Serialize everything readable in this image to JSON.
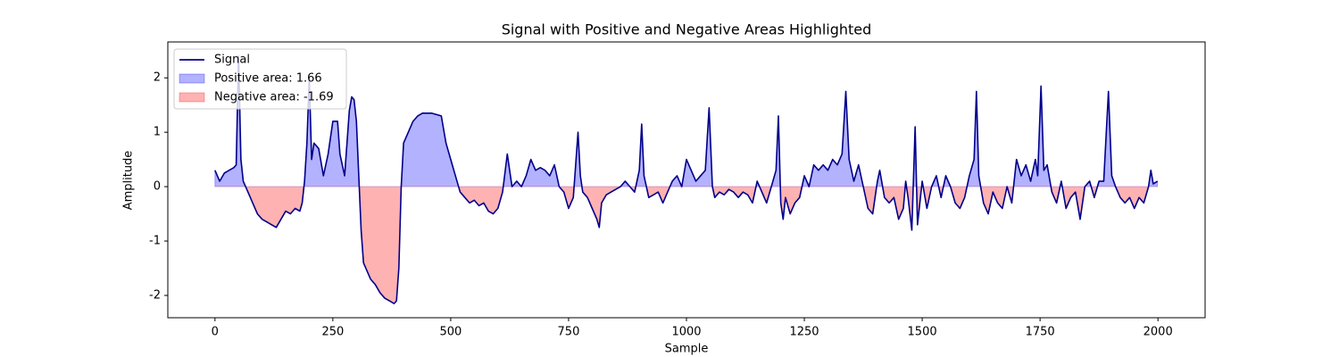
{
  "chart_data": {
    "type": "line",
    "title": "Signal with Positive and Negative Areas Highlighted",
    "x_label": "Sample",
    "y_label": "Amplitude",
    "x": [
      0,
      10,
      20,
      30,
      40,
      45,
      50,
      55,
      60,
      70,
      80,
      90,
      100,
      110,
      120,
      130,
      140,
      150,
      160,
      170,
      180,
      185,
      190,
      195,
      200,
      205,
      210,
      220,
      230,
      240,
      250,
      260,
      265,
      275,
      285,
      290,
      295,
      300,
      305,
      310,
      315,
      320,
      330,
      340,
      350,
      360,
      370,
      380,
      385,
      390,
      395,
      400,
      410,
      420,
      430,
      440,
      460,
      480,
      490,
      500,
      510,
      520,
      530,
      540,
      550,
      560,
      570,
      580,
      590,
      600,
      610,
      620,
      625,
      630,
      640,
      650,
      660,
      670,
      680,
      690,
      700,
      710,
      720,
      730,
      740,
      750,
      760,
      765,
      770,
      775,
      780,
      790,
      800,
      810,
      815,
      820,
      830,
      840,
      850,
      860,
      870,
      880,
      890,
      900,
      905,
      910,
      920,
      930,
      940,
      950,
      960,
      970,
      980,
      990,
      1000,
      1010,
      1020,
      1030,
      1040,
      1048,
      1055,
      1060,
      1070,
      1080,
      1090,
      1100,
      1110,
      1120,
      1130,
      1140,
      1150,
      1160,
      1170,
      1180,
      1190,
      1195,
      1200,
      1205,
      1210,
      1220,
      1230,
      1240,
      1250,
      1260,
      1270,
      1280,
      1290,
      1300,
      1310,
      1320,
      1330,
      1338,
      1345,
      1355,
      1365,
      1375,
      1385,
      1395,
      1405,
      1410,
      1420,
      1430,
      1440,
      1450,
      1460,
      1465,
      1470,
      1478,
      1485,
      1490,
      1500,
      1510,
      1520,
      1530,
      1540,
      1550,
      1560,
      1570,
      1580,
      1590,
      1600,
      1610,
      1615,
      1620,
      1630,
      1640,
      1650,
      1660,
      1670,
      1680,
      1690,
      1700,
      1710,
      1720,
      1730,
      1740,
      1745,
      1752,
      1758,
      1765,
      1775,
      1785,
      1795,
      1805,
      1815,
      1825,
      1835,
      1845,
      1855,
      1865,
      1875,
      1885,
      1895,
      1902,
      1910,
      1920,
      1930,
      1940,
      1950,
      1960,
      1970,
      1980,
      1985,
      1990,
      1999
    ],
    "series": [
      {
        "name": "Signal",
        "color": "#00008b",
        "values": [
          0.3,
          0.1,
          0.25,
          0.3,
          0.35,
          0.4,
          2.4,
          0.5,
          0.1,
          -0.1,
          -0.3,
          -0.5,
          -0.6,
          -0.65,
          -0.7,
          -0.75,
          -0.6,
          -0.45,
          -0.5,
          -0.4,
          -0.45,
          -0.3,
          0.1,
          0.8,
          2.0,
          0.5,
          0.8,
          0.7,
          0.2,
          0.6,
          1.2,
          1.2,
          0.6,
          0.2,
          1.4,
          1.65,
          1.6,
          1.2,
          0.2,
          -0.8,
          -1.4,
          -1.5,
          -1.7,
          -1.8,
          -1.95,
          -2.05,
          -2.1,
          -2.15,
          -2.1,
          -1.5,
          0.0,
          0.8,
          1.0,
          1.2,
          1.3,
          1.35,
          1.35,
          1.3,
          0.8,
          0.5,
          0.2,
          -0.1,
          -0.2,
          -0.3,
          -0.25,
          -0.35,
          -0.3,
          -0.45,
          -0.5,
          -0.4,
          -0.1,
          0.6,
          0.3,
          0.0,
          0.1,
          0.0,
          0.2,
          0.5,
          0.3,
          0.35,
          0.3,
          0.2,
          0.4,
          0.0,
          -0.1,
          -0.4,
          -0.2,
          0.4,
          1.0,
          0.2,
          -0.1,
          -0.2,
          -0.4,
          -0.6,
          -0.75,
          -0.3,
          -0.15,
          -0.1,
          -0.05,
          0.0,
          0.1,
          0.0,
          -0.1,
          0.3,
          1.15,
          0.2,
          -0.2,
          -0.15,
          -0.1,
          -0.3,
          -0.1,
          0.1,
          0.2,
          0.0,
          0.5,
          0.3,
          0.1,
          0.2,
          0.3,
          1.45,
          0.0,
          -0.2,
          -0.1,
          -0.15,
          -0.05,
          -0.1,
          -0.2,
          -0.1,
          -0.15,
          -0.3,
          0.1,
          -0.1,
          -0.3,
          0.0,
          0.3,
          1.3,
          -0.3,
          -0.6,
          -0.2,
          -0.5,
          -0.3,
          -0.2,
          0.2,
          0.0,
          0.4,
          0.3,
          0.4,
          0.3,
          0.5,
          0.4,
          0.6,
          1.75,
          0.5,
          0.1,
          0.4,
          0.0,
          -0.4,
          -0.5,
          0.1,
          0.3,
          -0.2,
          -0.3,
          -0.2,
          -0.6,
          -0.4,
          0.1,
          -0.2,
          -0.8,
          1.1,
          -0.7,
          0.1,
          -0.4,
          0.0,
          0.2,
          -0.2,
          0.2,
          0.0,
          -0.3,
          -0.4,
          -0.2,
          0.2,
          0.5,
          1.75,
          0.2,
          -0.3,
          -0.5,
          -0.1,
          -0.3,
          -0.4,
          0.0,
          -0.3,
          0.5,
          0.2,
          0.4,
          0.1,
          0.5,
          0.2,
          1.85,
          0.3,
          0.4,
          -0.1,
          -0.3,
          0.1,
          -0.4,
          -0.2,
          -0.1,
          -0.6,
          0.0,
          0.1,
          -0.2,
          0.1,
          0.1,
          1.75,
          0.2,
          0.0,
          -0.2,
          -0.3,
          -0.2,
          -0.4,
          -0.2,
          -0.3,
          0.0,
          0.3,
          0.05,
          0.1
        ]
      }
    ],
    "areas": [
      {
        "name": "Positive area: 1.66",
        "color": "#0000ff",
        "sign": "positive"
      },
      {
        "name": "Negative area: -1.69",
        "color": "#ff0000",
        "sign": "negative"
      }
    ],
    "xlim": [
      -100,
      2100
    ],
    "xticks": [
      0,
      250,
      500,
      750,
      1000,
      1250,
      1500,
      1750,
      2000
    ],
    "ylim": [
      -2.41,
      2.66
    ],
    "yticks": [
      -2,
      -1,
      0,
      1,
      2
    ],
    "legend": "upper left"
  }
}
